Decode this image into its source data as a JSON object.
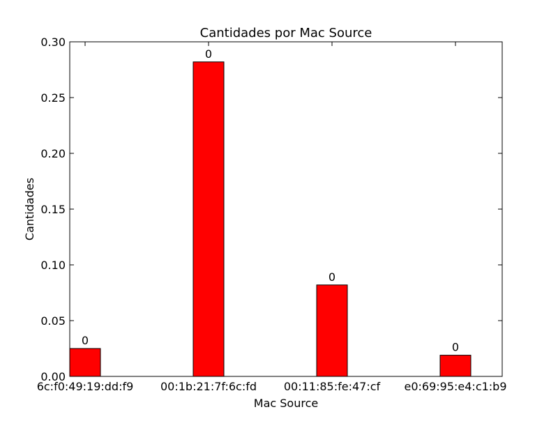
{
  "chart_data": {
    "type": "bar",
    "title": "Cantidades por Mac Source",
    "xlabel": "Mac Source",
    "ylabel": "Cantidades",
    "categories": [
      "6c:f0:49:19:dd:f9",
      "00:1b:21:7f:6c:fd",
      "00:11:85:fe:47:cf",
      "e0:69:95:e4:c1:b9"
    ],
    "values": [
      0.025,
      0.282,
      0.082,
      0.019
    ],
    "data_labels": [
      "0",
      "0",
      "0",
      "0"
    ],
    "ylim": [
      0,
      0.3
    ],
    "yticks": [
      0.0,
      0.05,
      0.1,
      0.15,
      0.2,
      0.25,
      0.3
    ],
    "ytick_labels": [
      "0.00",
      "0.05",
      "0.10",
      "0.15",
      "0.20",
      "0.25",
      "0.30"
    ],
    "bar_color": "#ff0000",
    "grid": false
  }
}
